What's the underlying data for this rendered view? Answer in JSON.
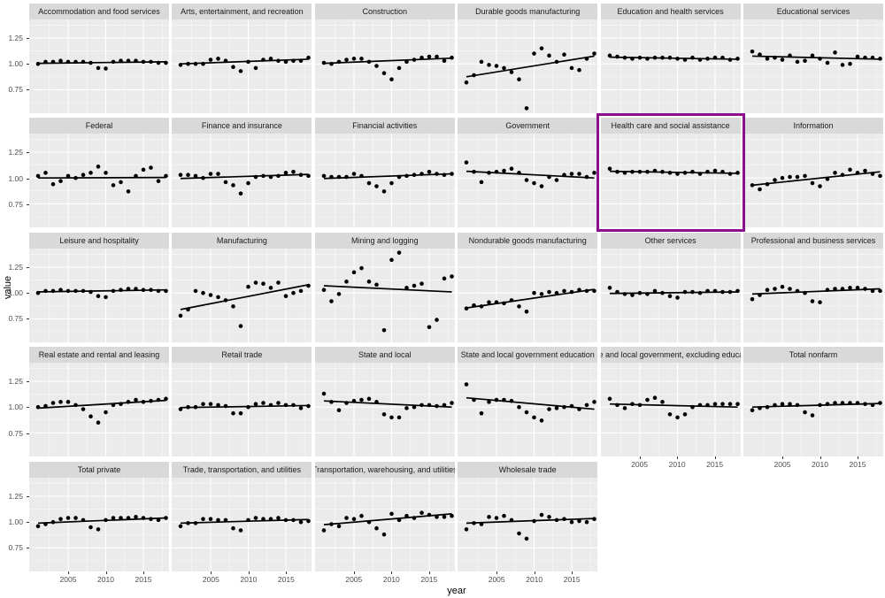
{
  "figure": {
    "x_label": "year",
    "y_label": "value",
    "y_tick_labels": [
      "1.25",
      "1.00",
      "0.75"
    ],
    "x_tick_labels": [
      "2005",
      "2010",
      "2015"
    ]
  },
  "colors": {
    "panel_bg": "#EBEBEB",
    "strip_bg": "#D9D9D9",
    "strip_text": "#1A1A1A",
    "grid_major": "#FFFFFF",
    "grid_minor": "#FFFFFF",
    "axis_text": "#4D4D4D",
    "geom": "#000000",
    "background": "#FFFFFF"
  },
  "highlight": {
    "facet": "Health care and social assistance",
    "color": "#8B0F8F"
  },
  "chart_data": {
    "type": "scatter",
    "subtype": "faceted-scatter-with-linear-trend",
    "xlabel": "year",
    "ylabel": "value",
    "ncol": 6,
    "nrow": 5,
    "grid": "on",
    "legend": "none",
    "x_range": [
      2000.2,
      2018.8
    ],
    "y_range": [
      0.53,
      1.43
    ],
    "x_major_ticks": [
      2005,
      2010,
      2015
    ],
    "x_minor_ticks": [
      2002.5,
      2007.5,
      2012.5,
      2017.5
    ],
    "y_major_ticks": [
      0.75,
      1.0,
      1.25
    ],
    "y_minor_ticks": [
      0.625,
      0.875,
      1.125,
      1.375
    ],
    "years": [
      2001,
      2002,
      2003,
      2004,
      2005,
      2006,
      2007,
      2008,
      2009,
      2010,
      2011,
      2012,
      2013,
      2014,
      2015,
      2016,
      2017,
      2018
    ],
    "facets": [
      {
        "label": "Accommodation and food services",
        "values": [
          1.0,
          1.02,
          1.02,
          1.03,
          1.02,
          1.02,
          1.02,
          1.01,
          0.96,
          0.955,
          1.02,
          1.03,
          1.03,
          1.03,
          1.02,
          1.02,
          1.01,
          1.01
        ],
        "trend": [
          1.005,
          1.02
        ]
      },
      {
        "label": "Arts, entertainment, and recreation",
        "values": [
          0.99,
          1.0,
          1.0,
          1.0,
          1.04,
          1.05,
          1.03,
          0.97,
          0.93,
          1.02,
          0.96,
          1.04,
          1.05,
          1.03,
          1.02,
          1.03,
          1.03,
          1.06
        ],
        "trend": [
          1.0,
          1.045
        ]
      },
      {
        "label": "Construction",
        "values": [
          1.01,
          1.0,
          1.02,
          1.04,
          1.05,
          1.05,
          1.02,
          0.98,
          0.91,
          0.85,
          0.96,
          1.02,
          1.04,
          1.06,
          1.07,
          1.07,
          1.03,
          1.06
        ],
        "trend": [
          1.005,
          1.055
        ]
      },
      {
        "label": "Durable goods manufacturing",
        "values": [
          0.82,
          0.89,
          1.02,
          0.99,
          0.98,
          0.96,
          0.92,
          0.85,
          0.57,
          1.1,
          1.15,
          1.08,
          1.02,
          1.09,
          0.96,
          0.94,
          1.05,
          1.1
        ],
        "trend": [
          0.875,
          1.075
        ]
      },
      {
        "label": "Education and health services",
        "values": [
          1.08,
          1.07,
          1.06,
          1.05,
          1.06,
          1.05,
          1.06,
          1.06,
          1.06,
          1.05,
          1.04,
          1.06,
          1.04,
          1.05,
          1.06,
          1.06,
          1.04,
          1.05
        ],
        "trend": [
          1.065,
          1.045
        ]
      },
      {
        "label": "Educational services",
        "values": [
          1.12,
          1.09,
          1.05,
          1.06,
          1.04,
          1.08,
          1.02,
          1.03,
          1.08,
          1.05,
          1.01,
          1.11,
          0.99,
          1.0,
          1.07,
          1.06,
          1.06,
          1.05
        ],
        "trend": [
          1.075,
          1.045
        ]
      },
      {
        "label": "Federal",
        "values": [
          1.02,
          1.05,
          0.94,
          0.97,
          1.02,
          1.0,
          1.03,
          1.05,
          1.11,
          1.05,
          0.93,
          0.96,
          0.87,
          1.02,
          1.08,
          1.1,
          0.97,
          1.02
        ],
        "trend": [
          1.0,
          1.005
        ]
      },
      {
        "label": "Finance and insurance",
        "values": [
          1.03,
          1.03,
          1.02,
          1.0,
          1.04,
          1.04,
          0.96,
          0.93,
          0.85,
          0.95,
          1.01,
          1.02,
          1.01,
          1.02,
          1.05,
          1.06,
          1.03,
          1.02
        ],
        "trend": [
          0.995,
          1.035
        ]
      },
      {
        "label": "Financial activities",
        "values": [
          1.02,
          1.01,
          1.01,
          1.01,
          1.04,
          1.02,
          0.95,
          0.92,
          0.87,
          0.95,
          1.01,
          1.02,
          1.03,
          1.04,
          1.06,
          1.04,
          1.03,
          1.04
        ],
        "trend": [
          0.995,
          1.04
        ]
      },
      {
        "label": "Government",
        "values": [
          1.15,
          1.06,
          0.96,
          1.05,
          1.06,
          1.07,
          1.09,
          1.05,
          0.98,
          0.95,
          0.92,
          1.01,
          0.98,
          1.03,
          1.04,
          1.04,
          1.01,
          1.05
        ],
        "trend": [
          1.065,
          1.0
        ]
      },
      {
        "label": "Health care and social assistance",
        "values": [
          1.09,
          1.06,
          1.05,
          1.06,
          1.06,
          1.06,
          1.07,
          1.06,
          1.05,
          1.04,
          1.05,
          1.06,
          1.04,
          1.06,
          1.07,
          1.06,
          1.04,
          1.05
        ],
        "trend": [
          1.065,
          1.045
        ]
      },
      {
        "label": "Information",
        "values": [
          0.93,
          0.89,
          0.94,
          0.98,
          1.0,
          1.01,
          1.01,
          1.02,
          0.95,
          0.92,
          0.99,
          1.05,
          1.03,
          1.08,
          1.05,
          1.07,
          1.04,
          1.02
        ],
        "trend": [
          0.93,
          1.06
        ]
      },
      {
        "label": "Leisure and hospitality",
        "values": [
          1.0,
          1.02,
          1.02,
          1.03,
          1.02,
          1.02,
          1.02,
          1.01,
          0.97,
          0.96,
          1.02,
          1.03,
          1.04,
          1.04,
          1.03,
          1.03,
          1.02,
          1.02
        ],
        "trend": [
          1.01,
          1.03
        ]
      },
      {
        "label": "Manufacturing",
        "values": [
          0.78,
          0.84,
          1.02,
          1.0,
          0.98,
          0.96,
          0.93,
          0.87,
          0.68,
          1.06,
          1.1,
          1.09,
          1.05,
          1.1,
          0.97,
          1.0,
          1.02,
          1.07
        ],
        "trend": [
          0.84,
          1.08
        ]
      },
      {
        "label": "Mining and logging",
        "values": [
          1.03,
          0.92,
          0.99,
          1.11,
          1.2,
          1.24,
          1.11,
          1.08,
          0.64,
          1.32,
          1.39,
          1.05,
          1.07,
          1.09,
          0.67,
          0.74,
          1.14,
          1.16
        ],
        "trend": [
          1.07,
          1.01
        ]
      },
      {
        "label": "Nondurable goods manufacturing",
        "values": [
          0.85,
          0.88,
          0.87,
          0.91,
          0.91,
          0.9,
          0.93,
          0.87,
          0.82,
          1.0,
          0.99,
          1.01,
          1.0,
          1.02,
          1.01,
          1.03,
          1.02,
          1.02
        ],
        "trend": [
          0.855,
          1.035
        ]
      },
      {
        "label": "Other services",
        "values": [
          1.05,
          1.01,
          0.99,
          0.98,
          1.0,
          0.99,
          1.02,
          1.0,
          0.97,
          0.955,
          1.01,
          1.01,
          1.0,
          1.02,
          1.02,
          1.01,
          1.01,
          1.02
        ],
        "trend": [
          0.995,
          1.01
        ]
      },
      {
        "label": "Professional and business services",
        "values": [
          0.94,
          0.98,
          1.03,
          1.04,
          1.06,
          1.04,
          1.02,
          1.0,
          0.92,
          0.91,
          1.03,
          1.04,
          1.04,
          1.05,
          1.05,
          1.04,
          1.02,
          1.02
        ],
        "trend": [
          0.99,
          1.04
        ]
      },
      {
        "label": "Real estate and rental and leasing",
        "values": [
          1.0,
          1.01,
          1.04,
          1.05,
          1.05,
          1.02,
          0.98,
          0.91,
          0.85,
          0.95,
          1.02,
          1.03,
          1.05,
          1.07,
          1.05,
          1.06,
          1.07,
          1.08
        ],
        "trend": [
          0.99,
          1.065
        ]
      },
      {
        "label": "Retail trade",
        "values": [
          0.98,
          1.0,
          1.0,
          1.03,
          1.03,
          1.02,
          1.01,
          0.94,
          0.94,
          1.0,
          1.03,
          1.04,
          1.02,
          1.04,
          1.02,
          1.02,
          0.99,
          1.01
        ],
        "trend": [
          0.995,
          1.015
        ]
      },
      {
        "label": "State and local",
        "values": [
          1.13,
          1.05,
          0.97,
          1.04,
          1.06,
          1.07,
          1.08,
          1.05,
          0.93,
          0.9,
          0.9,
          0.99,
          1.0,
          1.02,
          1.02,
          1.01,
          1.02,
          1.04
        ],
        "trend": [
          1.06,
          1.0
        ]
      },
      {
        "label": "State and local government education",
        "values": [
          1.22,
          1.07,
          0.94,
          1.05,
          1.07,
          1.07,
          1.06,
          1.0,
          0.95,
          0.9,
          0.87,
          0.98,
          0.99,
          1.0,
          1.01,
          0.98,
          1.02,
          1.05
        ],
        "trend": [
          1.09,
          0.98
        ]
      },
      {
        "label": "State and local government, excluding education",
        "values": [
          1.08,
          1.02,
          0.99,
          1.03,
          1.02,
          1.07,
          1.09,
          1.05,
          0.93,
          0.9,
          0.93,
          1.0,
          1.02,
          1.02,
          1.03,
          1.03,
          1.03,
          1.03
        ],
        "trend": [
          1.03,
          1.0
        ]
      },
      {
        "label": "Total nonfarm",
        "values": [
          0.97,
          0.99,
          1.0,
          1.02,
          1.03,
          1.03,
          1.02,
          0.95,
          0.92,
          1.02,
          1.03,
          1.04,
          1.04,
          1.04,
          1.04,
          1.03,
          1.02,
          1.04
        ],
        "trend": [
          1.0,
          1.035
        ]
      },
      {
        "label": "Total private",
        "values": [
          0.96,
          0.98,
          1.0,
          1.03,
          1.04,
          1.04,
          1.02,
          0.95,
          0.93,
          1.02,
          1.04,
          1.04,
          1.04,
          1.05,
          1.04,
          1.03,
          1.02,
          1.04
        ],
        "trend": [
          0.99,
          1.04
        ]
      },
      {
        "label": "Trade, transportation, and utilities",
        "values": [
          0.96,
          0.99,
          0.99,
          1.03,
          1.03,
          1.02,
          1.02,
          0.94,
          0.92,
          1.02,
          1.04,
          1.03,
          1.03,
          1.04,
          1.02,
          1.02,
          1.0,
          1.01
        ],
        "trend": [
          0.99,
          1.025
        ]
      },
      {
        "label": "Transportation, warehousing, and utilities",
        "values": [
          0.92,
          0.98,
          0.96,
          1.04,
          1.03,
          1.06,
          1.0,
          0.94,
          0.88,
          1.08,
          1.02,
          1.06,
          1.04,
          1.09,
          1.07,
          1.05,
          1.05,
          1.06
        ],
        "trend": [
          0.975,
          1.08
        ]
      },
      {
        "label": "Wholesale trade",
        "values": [
          0.93,
          0.99,
          0.98,
          1.05,
          1.04,
          1.06,
          1.02,
          0.89,
          0.84,
          1.01,
          1.07,
          1.05,
          1.02,
          1.03,
          1.0,
          1.01,
          1.0,
          1.03
        ],
        "trend": [
          0.99,
          1.035
        ]
      }
    ]
  }
}
